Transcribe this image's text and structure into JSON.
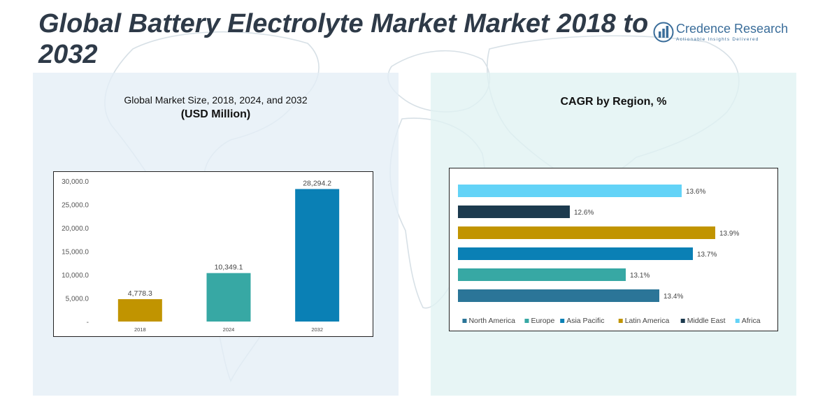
{
  "title": "Global Battery Electrolyte Market Market 2018 to 2032",
  "logo": {
    "name": "Credence Research",
    "tagline": "Actionable Insights Delivered",
    "icon": "bar-chart-logo-icon"
  },
  "left_panel": {
    "title_line1": "Global Market Size, 2018, 2024, and 2032",
    "title_line2": "(USD Million)"
  },
  "right_panel": {
    "title": "CAGR by Region, %"
  },
  "chart_data": [
    {
      "type": "bar",
      "title": "Global Market Size, 2018, 2024, and 2032 (USD Million)",
      "categories": [
        "2018",
        "2024",
        "2032"
      ],
      "values": [
        4778.3,
        10349.1,
        28294.2
      ],
      "value_labels": [
        "4,778.3",
        "10,349.1",
        "28,294.2"
      ],
      "colors": [
        "#c19400",
        "#37a8a4",
        "#0a80b5"
      ],
      "ylim": [
        0,
        30000
      ],
      "yticks": [
        0,
        5000,
        10000,
        15000,
        20000,
        25000,
        30000
      ],
      "ytick_labels": [
        "-",
        "5,000.0",
        "10,000.0",
        "15,000.0",
        "20,000.0",
        "25,000.0",
        "30,000.0"
      ],
      "grid": false,
      "xlabel": "",
      "ylabel": ""
    },
    {
      "type": "bar",
      "orientation": "horizontal",
      "title": "CAGR by Region, %",
      "categories": [
        "North America",
        "Europe",
        "Asia Pacific",
        "Latin America",
        "Middle East",
        "Africa"
      ],
      "values": [
        13.4,
        13.1,
        13.7,
        13.9,
        12.6,
        13.6
      ],
      "value_labels": [
        "13.4%",
        "13.1%",
        "13.7%",
        "13.9%",
        "12.6%",
        "13.6%"
      ],
      "colors": [
        "#2b7598",
        "#37a8a4",
        "#0a80b5",
        "#c19400",
        "#1c3a4e",
        "#63d3f7"
      ],
      "axis_baseline": 11.6,
      "legend": "bottom",
      "grid": false
    }
  ]
}
